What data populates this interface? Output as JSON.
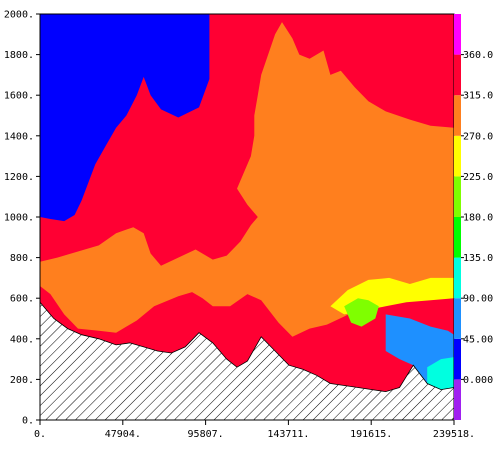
{
  "chart_data": {
    "type": "heatmap",
    "title": "",
    "xlabel": "",
    "ylabel": "",
    "xlim": [
      0,
      239518
    ],
    "ylim": [
      0,
      2000
    ],
    "x_ticks": [
      {
        "value": 0,
        "label": "0."
      },
      {
        "value": 47904,
        "label": "47904."
      },
      {
        "value": 95807,
        "label": "95807."
      },
      {
        "value": 143711,
        "label": "143711."
      },
      {
        "value": 191615,
        "label": "191615."
      },
      {
        "value": 239518,
        "label": "239518."
      }
    ],
    "y_ticks": [
      {
        "value": 0,
        "label": "0."
      },
      {
        "value": 200,
        "label": "200."
      },
      {
        "value": 400,
        "label": "400."
      },
      {
        "value": 600,
        "label": "600."
      },
      {
        "value": 800,
        "label": "800."
      },
      {
        "value": 1000,
        "label": "1000."
      },
      {
        "value": 1200,
        "label": "1200."
      },
      {
        "value": 1400,
        "label": "1400."
      },
      {
        "value": 1600,
        "label": "1600."
      },
      {
        "value": 1800,
        "label": "1800."
      },
      {
        "value": 2000,
        "label": "2000."
      }
    ],
    "colorbar": {
      "levels": [
        {
          "from": -45,
          "to": 0,
          "color": "#a020f0"
        },
        {
          "from": 0,
          "to": 45,
          "color": "#0000ff"
        },
        {
          "from": 45,
          "to": 90,
          "color": "#1e90ff"
        },
        {
          "from": 90,
          "to": 135,
          "color": "#00ffe0"
        },
        {
          "from": 135,
          "to": 180,
          "color": "#00ff00"
        },
        {
          "from": 180,
          "to": 225,
          "color": "#7fff00"
        },
        {
          "from": 225,
          "to": 270,
          "color": "#ffff00"
        },
        {
          "from": 270,
          "to": 315,
          "color": "#ff7f1e"
        },
        {
          "from": 315,
          "to": 360,
          "color": "#ff0033"
        },
        {
          "from": 360,
          "to": 405,
          "color": "#ff00ff"
        }
      ],
      "labels": [
        {
          "value": 0,
          "label": "0.000"
        },
        {
          "value": 45,
          "label": "45.00"
        },
        {
          "value": 90,
          "label": "90.00"
        },
        {
          "value": 135,
          "label": "135.0"
        },
        {
          "value": 180,
          "label": "180.0"
        },
        {
          "value": 225,
          "label": "225.0"
        },
        {
          "value": 270,
          "label": "270.0"
        },
        {
          "value": 315,
          "label": "315.0"
        },
        {
          "value": 360,
          "label": "360.0"
        }
      ]
    },
    "terrain": {
      "fill": "hatched",
      "profile": [
        [
          0,
          580
        ],
        [
          8000,
          500
        ],
        [
          16000,
          450
        ],
        [
          24000,
          420
        ],
        [
          34000,
          400
        ],
        [
          44000,
          370
        ],
        [
          52000,
          380
        ],
        [
          60000,
          360
        ],
        [
          68000,
          340
        ],
        [
          76000,
          330
        ],
        [
          84000,
          360
        ],
        [
          92000,
          430
        ],
        [
          100000,
          380
        ],
        [
          108000,
          300
        ],
        [
          114000,
          260
        ],
        [
          120000,
          290
        ],
        [
          128000,
          410
        ],
        [
          136000,
          340
        ],
        [
          144000,
          270
        ],
        [
          152000,
          250
        ],
        [
          160000,
          220
        ],
        [
          168000,
          180
        ],
        [
          176000,
          170
        ],
        [
          184000,
          160
        ],
        [
          192000,
          150
        ],
        [
          200000,
          140
        ],
        [
          208000,
          160
        ],
        [
          216000,
          270
        ],
        [
          224000,
          180
        ],
        [
          232000,
          150
        ],
        [
          239518,
          160
        ]
      ]
    },
    "regions": [
      {
        "label": "background",
        "value_range": [
          315,
          360
        ],
        "color": "#ff0033",
        "polygon": [
          [
            0,
            2000
          ],
          [
            239518,
            2000
          ],
          [
            239518,
            0
          ],
          [
            0,
            0
          ]
        ]
      },
      {
        "label": "upper-left",
        "value_range": [
          0,
          45
        ],
        "color": "#0000ff",
        "polygon": [
          [
            0,
            2000
          ],
          [
            98000,
            2000
          ],
          [
            98000,
            1680
          ],
          [
            92000,
            1540
          ],
          [
            80000,
            1490
          ],
          [
            70000,
            1530
          ],
          [
            64000,
            1600
          ],
          [
            60000,
            1690
          ],
          [
            56000,
            1600
          ],
          [
            50000,
            1500
          ],
          [
            44000,
            1440
          ],
          [
            38000,
            1350
          ],
          [
            32000,
            1260
          ],
          [
            28000,
            1170
          ],
          [
            24000,
            1080
          ],
          [
            20000,
            1010
          ],
          [
            14000,
            980
          ],
          [
            6000,
            990
          ],
          [
            0,
            1000
          ]
        ]
      },
      {
        "label": "orange-mass",
        "value_range": [
          270,
          315
        ],
        "color": "#ff7f1e",
        "polygon": [
          [
            128000,
            1700
          ],
          [
            136000,
            1900
          ],
          [
            140000,
            1960
          ],
          [
            146000,
            1880
          ],
          [
            150000,
            1800
          ],
          [
            156000,
            1780
          ],
          [
            164000,
            1820
          ],
          [
            168000,
            1700
          ],
          [
            174000,
            1720
          ],
          [
            182000,
            1640
          ],
          [
            190000,
            1570
          ],
          [
            200000,
            1520
          ],
          [
            214000,
            1480
          ],
          [
            226000,
            1450
          ],
          [
            239518,
            1440
          ],
          [
            239518,
            700
          ],
          [
            220000,
            660
          ],
          [
            205000,
            610
          ],
          [
            190000,
            570
          ],
          [
            176000,
            510
          ],
          [
            166000,
            470
          ],
          [
            156000,
            450
          ],
          [
            146000,
            410
          ],
          [
            138000,
            480
          ],
          [
            128000,
            590
          ],
          [
            120000,
            620
          ],
          [
            110000,
            560
          ],
          [
            100000,
            560
          ],
          [
            94000,
            600
          ],
          [
            88000,
            630
          ],
          [
            80000,
            610
          ],
          [
            66000,
            560
          ],
          [
            56000,
            490
          ],
          [
            44000,
            430
          ],
          [
            34000,
            440
          ],
          [
            22000,
            450
          ],
          [
            14000,
            520
          ],
          [
            6000,
            620
          ],
          [
            0,
            660
          ],
          [
            0,
            780
          ],
          [
            10000,
            800
          ],
          [
            22000,
            830
          ],
          [
            34000,
            860
          ],
          [
            44000,
            920
          ],
          [
            54000,
            950
          ],
          [
            60000,
            920
          ],
          [
            64000,
            820
          ],
          [
            70000,
            760
          ],
          [
            80000,
            800
          ],
          [
            90000,
            840
          ],
          [
            100000,
            790
          ],
          [
            108000,
            810
          ],
          [
            116000,
            880
          ],
          [
            122000,
            960
          ],
          [
            126000,
            1000
          ],
          [
            120000,
            1060
          ],
          [
            114000,
            1140
          ],
          [
            118000,
            1220
          ],
          [
            122000,
            1300
          ],
          [
            124000,
            1400
          ],
          [
            124000,
            1500
          ],
          [
            126000,
            1600
          ]
        ]
      },
      {
        "label": "yellow-band",
        "value_range": [
          225,
          270
        ],
        "color": "#ffff00",
        "polygon": [
          [
            168000,
            560
          ],
          [
            178000,
            640
          ],
          [
            190000,
            690
          ],
          [
            202000,
            700
          ],
          [
            214000,
            670
          ],
          [
            226000,
            700
          ],
          [
            239518,
            700
          ],
          [
            239518,
            600
          ],
          [
            226000,
            590
          ],
          [
            212000,
            580
          ],
          [
            200000,
            560
          ],
          [
            188000,
            540
          ],
          [
            176000,
            520
          ]
        ]
      },
      {
        "label": "green-patch",
        "value_range": [
          180,
          225
        ],
        "color": "#7fff00",
        "polygon": [
          [
            176000,
            560
          ],
          [
            184000,
            600
          ],
          [
            190000,
            590
          ],
          [
            196000,
            560
          ],
          [
            194000,
            500
          ],
          [
            186000,
            460
          ],
          [
            180000,
            480
          ]
        ]
      },
      {
        "label": "blue-pocket",
        "value_range": [
          45,
          90
        ],
        "color": "#1e90ff",
        "polygon": [
          [
            200000,
            520
          ],
          [
            214000,
            500
          ],
          [
            226000,
            460
          ],
          [
            236000,
            440
          ],
          [
            239518,
            420
          ],
          [
            239518,
            160
          ],
          [
            232000,
            150
          ],
          [
            224000,
            180
          ],
          [
            216000,
            270
          ],
          [
            208000,
            300
          ],
          [
            200000,
            340
          ]
        ]
      },
      {
        "label": "teal-fringe",
        "value_range": [
          90,
          135
        ],
        "color": "#00ffe0",
        "polygon": [
          [
            224000,
            260
          ],
          [
            232000,
            300
          ],
          [
            239518,
            310
          ],
          [
            239518,
            160
          ],
          [
            232000,
            150
          ],
          [
            224000,
            180
          ]
        ]
      }
    ]
  }
}
